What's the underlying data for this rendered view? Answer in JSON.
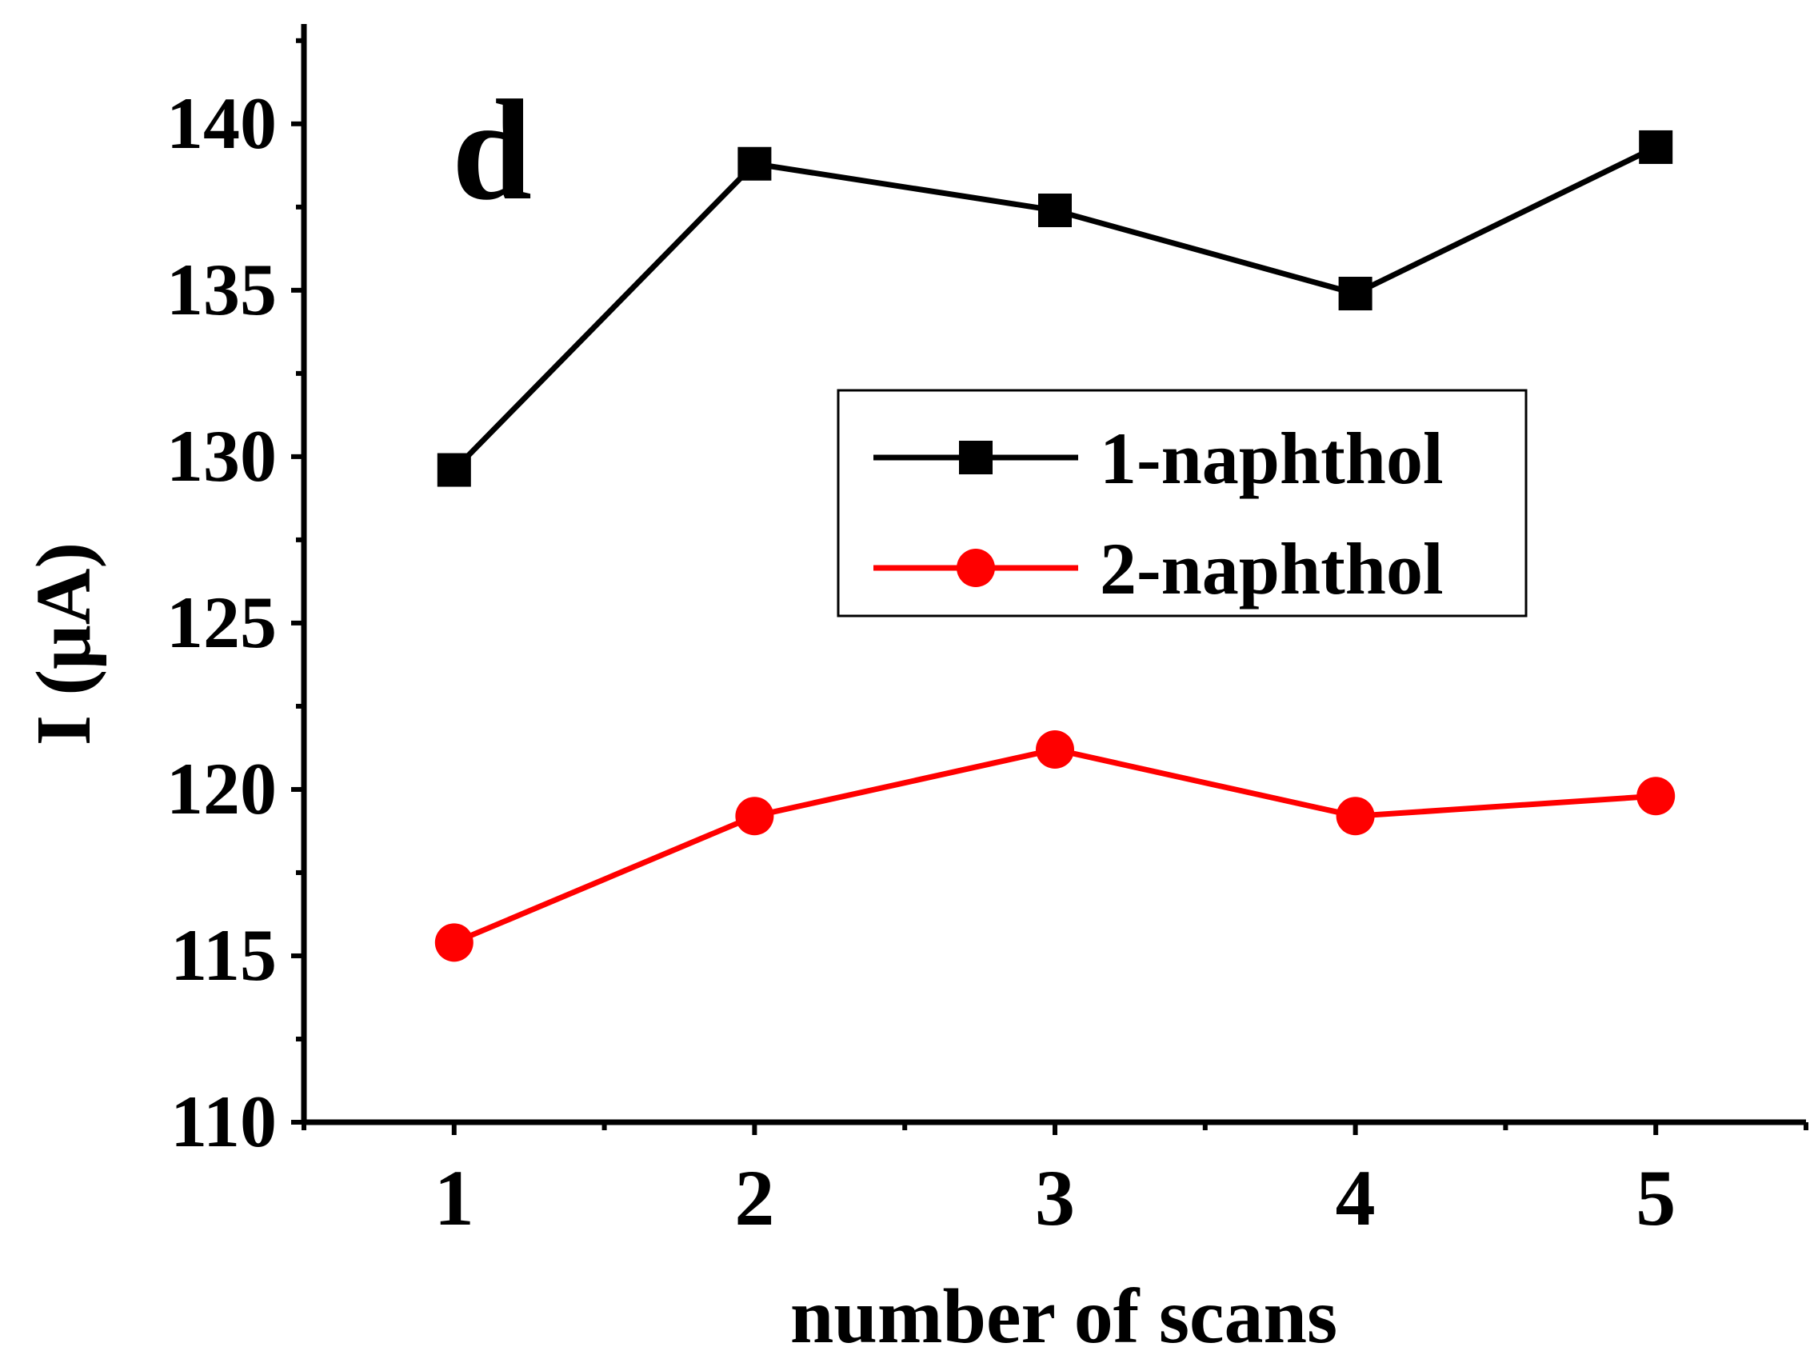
{
  "chart_data": {
    "type": "line",
    "panel_label": "d",
    "xlabel": "number of scans",
    "ylabel": "I (μA)",
    "xlim": [
      0.5,
      5.5
    ],
    "ylim": [
      110,
      143
    ],
    "x": [
      1,
      2,
      3,
      4,
      5
    ],
    "xticks": [
      1,
      2,
      3,
      4,
      5
    ],
    "xtick_labels": [
      "1",
      "2",
      "3",
      "4",
      "5"
    ],
    "yticks": [
      110,
      115,
      120,
      125,
      130,
      135,
      140
    ],
    "ytick_labels": [
      "110",
      "115",
      "120",
      "125",
      "130",
      "135",
      "140"
    ],
    "grid": false,
    "legend_position": "center-right",
    "series": [
      {
        "name": "1-naphthol",
        "marker": "square",
        "color": "#000000",
        "values": [
          129.6,
          138.8,
          137.4,
          134.9,
          139.3
        ]
      },
      {
        "name": "2-naphthol",
        "marker": "circle",
        "color": "#ff0000",
        "values": [
          115.4,
          119.2,
          121.2,
          119.2,
          119.8
        ]
      }
    ]
  }
}
